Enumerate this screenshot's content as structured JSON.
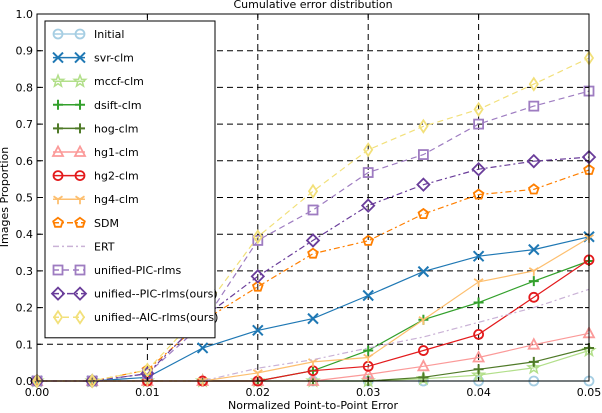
{
  "chart_data": {
    "type": "line",
    "title": "Cumulative error distribution",
    "xlabel": "Normalized Point-to-Point Error",
    "ylabel": "Images Proportion",
    "xlim": [
      0,
      0.05
    ],
    "ylim": [
      0,
      1.0
    ],
    "xticks": [
      "0.00",
      "0.01",
      "0.02",
      "0.03",
      "0.04",
      "0.05"
    ],
    "yticks": [
      "0.0",
      "0.1",
      "0.2",
      "0.3",
      "0.4",
      "0.5",
      "0.6",
      "0.7",
      "0.8",
      "0.9",
      "1.0"
    ],
    "grid": true,
    "legend_position": "top-left",
    "x": [
      0,
      0.005,
      0.01,
      0.015,
      0.02,
      0.025,
      0.03,
      0.035,
      0.04,
      0.045,
      0.05
    ],
    "series": [
      {
        "name": "Initial",
        "color": "#a6cee3",
        "marker": "circle",
        "dash": "solid",
        "values": [
          0,
          0,
          0,
          0,
          0,
          0,
          0,
          0,
          0,
          0,
          0
        ]
      },
      {
        "name": "svr-clm",
        "color": "#1f78b4",
        "marker": "x",
        "dash": "solid",
        "values": [
          0,
          0,
          0.01,
          0.09,
          0.138,
          0.17,
          0.233,
          0.298,
          0.34,
          0.358,
          0.393
        ]
      },
      {
        "name": "mccf-clm",
        "color": "#b2df8a",
        "marker": "star",
        "dash": "solid",
        "values": [
          0,
          0,
          0,
          0,
          0,
          0,
          0,
          0.006,
          0.016,
          0.036,
          0.083
        ]
      },
      {
        "name": "dsift-clm",
        "color": "#33a02c",
        "marker": "plus",
        "dash": "solid",
        "values": [
          0,
          0,
          0,
          0,
          0,
          0.028,
          0.083,
          0.167,
          0.214,
          0.272,
          0.327
        ]
      },
      {
        "name": "hog-clm",
        "color": "#4f7a28",
        "marker": "plus",
        "dash": "solid",
        "values": [
          0,
          0,
          0,
          0,
          0,
          0,
          0,
          0.01,
          0.032,
          0.052,
          0.09
        ]
      },
      {
        "name": "hg1-clm",
        "color": "#fb9a99",
        "marker": "triangle",
        "dash": "solid",
        "values": [
          0,
          0,
          0,
          0,
          0,
          0,
          0.018,
          0.04,
          0.064,
          0.099,
          0.13
        ]
      },
      {
        "name": "hg2-clm",
        "color": "#e31a1c",
        "marker": "circle",
        "dash": "solid",
        "values": [
          0,
          0,
          0,
          0,
          0,
          0.028,
          0.04,
          0.083,
          0.127,
          0.228,
          0.33
        ]
      },
      {
        "name": "hg4-clm",
        "color": "#fdbf6f",
        "marker": "tri_down",
        "dash": "solid",
        "values": [
          0,
          0,
          0,
          0,
          0.022,
          0.052,
          0.064,
          0.167,
          0.27,
          0.3,
          0.39
        ]
      },
      {
        "name": "SDM",
        "color": "#ff7f00",
        "marker": "pentagon",
        "dash": "dashdot",
        "values": [
          0,
          0,
          0.03,
          0.163,
          0.257,
          0.347,
          0.382,
          0.455,
          0.508,
          0.522,
          0.575
        ]
      },
      {
        "name": "ERT",
        "color": "#cab2d6",
        "marker": "none",
        "dash": "dashdot",
        "values": [
          0,
          0,
          0,
          0,
          0.035,
          0.058,
          0.09,
          0.12,
          0.16,
          0.2,
          0.25
        ]
      },
      {
        "name": "unified-PIC-rlms",
        "color": "#9e7cc1",
        "marker": "square",
        "dash": "dashed",
        "values": [
          0,
          0,
          0.02,
          0.155,
          0.383,
          0.466,
          0.568,
          0.617,
          0.7,
          0.749,
          0.79
        ]
      },
      {
        "name": "unified--PIC-rlms(ours)",
        "color": "#6a3d9a",
        "marker": "diamond",
        "dash": "dashdot",
        "values": [
          0,
          0,
          0.02,
          0.172,
          0.285,
          0.383,
          0.478,
          0.535,
          0.577,
          0.599,
          0.61
        ]
      },
      {
        "name": "unified--AIC-rlms(ours)",
        "color": "#f2e07a",
        "marker": "thin_diamond",
        "dash": "dashed",
        "values": [
          0,
          0,
          0.03,
          0.19,
          0.393,
          0.517,
          0.63,
          0.694,
          0.74,
          0.809,
          0.88
        ]
      }
    ]
  }
}
